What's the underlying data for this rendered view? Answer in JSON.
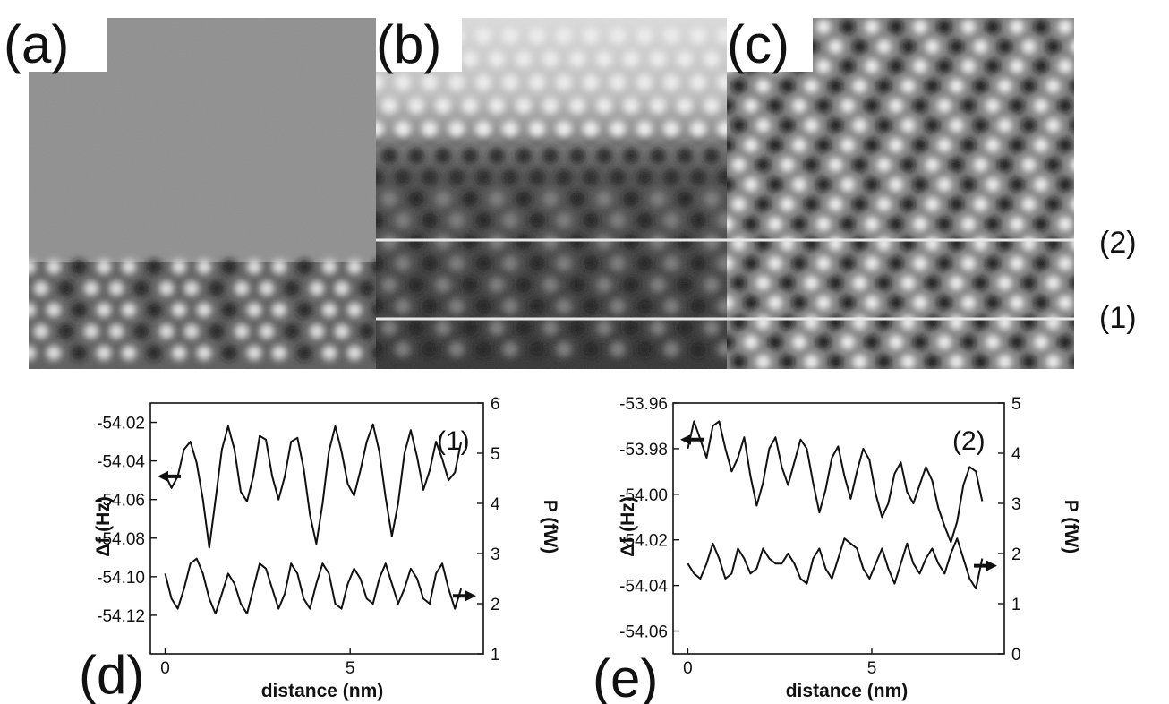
{
  "figure": {
    "images": [
      {
        "label": "(a)",
        "style": "split"
      },
      {
        "label": "(b)",
        "style": "dark"
      },
      {
        "label": "(c)",
        "style": "bright"
      }
    ],
    "line_labels": [
      "(2)",
      "(1)"
    ]
  },
  "chart_data": [
    {
      "type": "line",
      "panel_label": "(d)",
      "curve_label": "(1)",
      "xlabel": "distance (nm)",
      "ylabel_left": "Δf (Hz)",
      "ylabel_right": "P (fW)",
      "xlim": [
        -0.4,
        8.6
      ],
      "ylim_left": [
        -54.14,
        -54.01
      ],
      "ylim_right": [
        1,
        6
      ],
      "x_ticks": [
        0,
        5
      ],
      "y_left_ticks": [
        -54.02,
        -54.04,
        -54.06,
        -54.08,
        -54.1,
        -54.12
      ],
      "y_left_tick_labels": [
        "-54.02",
        "-54.04",
        "-54.06",
        "-54.08",
        "-54.10",
        "-54.12"
      ],
      "y_right_ticks": [
        6,
        5,
        4,
        3,
        2,
        1
      ],
      "y_right_tick_labels": [
        "6",
        "5",
        "4",
        "3",
        "2",
        "1"
      ],
      "series": [
        {
          "axis": "left",
          "x_start": 0,
          "x_end": 8,
          "values": [
            -54.047,
            -54.054,
            -54.048,
            -54.034,
            -54.03,
            -54.041,
            -54.06,
            -54.085,
            -54.06,
            -54.034,
            -54.022,
            -54.034,
            -54.056,
            -54.061,
            -54.048,
            -54.027,
            -54.029,
            -54.048,
            -54.06,
            -54.048,
            -54.03,
            -54.028,
            -54.044,
            -54.068,
            -54.083,
            -54.062,
            -54.035,
            -54.022,
            -54.035,
            -54.052,
            -54.058,
            -54.045,
            -54.03,
            -54.021,
            -54.035,
            -54.059,
            -54.079,
            -54.062,
            -54.036,
            -54.024,
            -54.038,
            -54.055,
            -54.045,
            -54.03,
            -54.039,
            -54.05,
            -54.046,
            -54.03
          ]
        },
        {
          "axis": "right",
          "x_start": 0,
          "x_end": 8,
          "values": [
            2.6,
            2.1,
            1.9,
            2.3,
            2.8,
            2.9,
            2.6,
            2.1,
            1.8,
            2.2,
            2.6,
            2.4,
            2.0,
            1.8,
            2.3,
            2.8,
            2.7,
            2.3,
            1.9,
            2.2,
            2.8,
            2.6,
            2.1,
            1.9,
            2.4,
            2.8,
            2.6,
            2.0,
            1.9,
            2.4,
            2.7,
            2.5,
            2.1,
            2.0,
            2.5,
            2.8,
            2.4,
            2.0,
            2.3,
            2.7,
            2.5,
            2.1,
            2.0,
            2.6,
            2.8,
            2.3,
            1.9,
            2.3
          ]
        }
      ],
      "arrows": [
        {
          "axis": "left",
          "direction": "left"
        },
        {
          "axis": "right",
          "direction": "right"
        }
      ]
    },
    {
      "type": "line",
      "panel_label": "(e)",
      "curve_label": "(2)",
      "xlabel": "distance (nm)",
      "ylabel_left": "Δf (Hz)",
      "ylabel_right": "P (fW)",
      "xlim": [
        -0.4,
        8.6
      ],
      "ylim_left": [
        -54.07,
        -53.96
      ],
      "ylim_right": [
        0,
        5
      ],
      "x_ticks": [
        0,
        5
      ],
      "y_left_ticks": [
        -53.96,
        -53.98,
        -54.0,
        -54.02,
        -54.04,
        -54.06
      ],
      "y_left_tick_labels": [
        "-53.96",
        "-53.98",
        "-54.00",
        "-54.02",
        "-54.04",
        "-54.06"
      ],
      "y_right_ticks": [
        5,
        4,
        3,
        2,
        1,
        0
      ],
      "y_right_tick_labels": [
        "5",
        "4",
        "3",
        "2",
        "1",
        "0"
      ],
      "series": [
        {
          "axis": "left",
          "x_start": 0,
          "x_end": 8,
          "values": [
            -53.98,
            -53.968,
            -53.976,
            -53.984,
            -53.97,
            -53.968,
            -53.98,
            -53.99,
            -53.984,
            -53.975,
            -53.992,
            -54.005,
            -53.995,
            -53.98,
            -53.975,
            -53.988,
            -53.996,
            -53.986,
            -53.976,
            -53.98,
            -53.995,
            -54.008,
            -53.998,
            -53.984,
            -53.979,
            -53.992,
            -54.002,
            -53.99,
            -53.98,
            -53.985,
            -54.0,
            -54.01,
            -54.004,
            -53.991,
            -53.986,
            -53.999,
            -54.004,
            -53.996,
            -53.988,
            -53.994,
            -54.006,
            -54.014,
            -54.021,
            -54.012,
            -53.996,
            -53.988,
            -53.99,
            -54.003
          ]
        },
        {
          "axis": "right",
          "x_start": 0,
          "x_end": 8,
          "values": [
            1.8,
            1.6,
            1.5,
            1.8,
            2.2,
            1.9,
            1.5,
            1.6,
            2.1,
            1.9,
            1.6,
            1.7,
            2.1,
            1.9,
            1.8,
            1.8,
            2.0,
            1.8,
            1.5,
            1.4,
            1.9,
            2.1,
            1.7,
            1.5,
            1.9,
            2.3,
            2.2,
            2.1,
            1.7,
            1.5,
            1.8,
            2.1,
            1.7,
            1.4,
            1.8,
            2.2,
            1.8,
            1.6,
            1.9,
            2.1,
            1.8,
            1.6,
            2.0,
            2.3,
            1.9,
            1.5,
            1.3,
            1.9
          ]
        }
      ],
      "arrows": [
        {
          "axis": "left",
          "direction": "left"
        },
        {
          "axis": "right",
          "direction": "right"
        }
      ]
    }
  ]
}
